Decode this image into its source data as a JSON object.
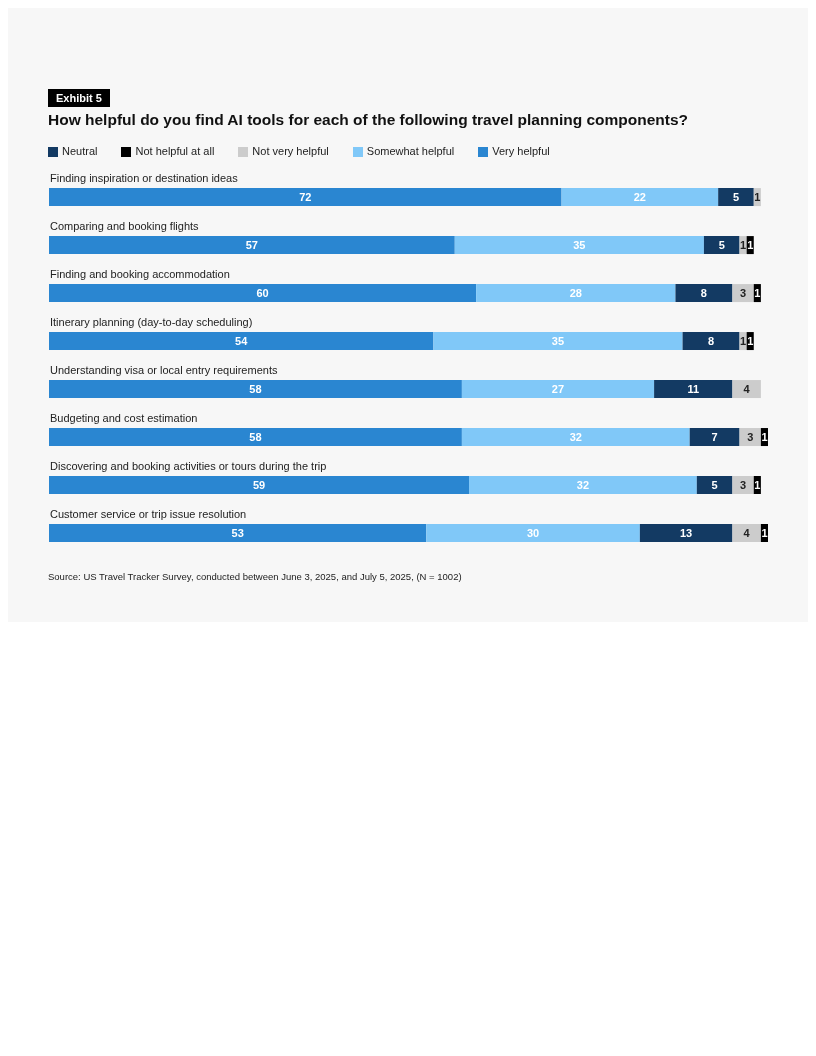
{
  "chart_data": {
    "type": "bar",
    "orientation": "horizontal",
    "stacked": true,
    "data_labels": true,
    "legend": "top left",
    "title": "How helpful do you find AI tools for each of the following travel planning components?",
    "annotations": [
      "Exhibit 5",
      "Source: US Travel Tracker Survey, conducted between June 3, 2025, and July 5, 2025, (N = 1002)"
    ],
    "categories": [
      "Finding inspiration or destination ideas",
      "Comparing and booking flights",
      "Finding and booking accommodation",
      "Itinerary planning (day-to-day scheduling)",
      "Understanding visa or local entry requirements",
      "Budgeting and cost estimation",
      "Discovering and booking activities or tours during the trip",
      "Customer service or trip issue resolution"
    ],
    "series": [
      {
        "name": "Very helpful",
        "color": "#2a86d1",
        "values": [
          72,
          57,
          60,
          54,
          58,
          58,
          59,
          53
        ]
      },
      {
        "name": "Somewhat helpful",
        "color": "#80c8f8",
        "values": [
          22,
          35,
          28,
          35,
          27,
          32,
          32,
          30
        ]
      },
      {
        "name": "Neutral",
        "color": "#133a63",
        "values": [
          5,
          5,
          8,
          8,
          11,
          7,
          5,
          13
        ]
      },
      {
        "name": "Not very helpful",
        "color": "#cccccc",
        "values": [
          1,
          1,
          3,
          1,
          4,
          3,
          3,
          4
        ]
      },
      {
        "name": "Not helpful at all",
        "color": "#000000",
        "values": [
          null,
          1,
          1,
          1,
          null,
          1,
          1,
          1
        ]
      }
    ]
  }
}
